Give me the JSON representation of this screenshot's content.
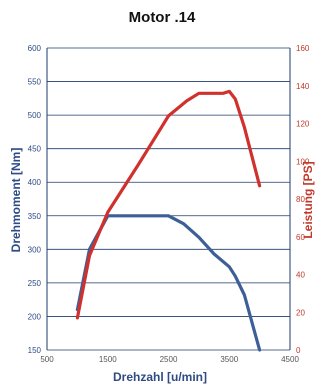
{
  "chart_data": {
    "type": "line",
    "title": "Motor .14",
    "xlabel": "Drehzahl [u/min]",
    "ylabel_left": "Drehmoment [Nm]",
    "ylabel_right": "Leistung [PS]",
    "xlim": [
      500,
      4500
    ],
    "ylim_left": [
      150,
      600
    ],
    "ylim_right": [
      0,
      160
    ],
    "x_ticks": [
      500,
      1500,
      2500,
      3500,
      4500
    ],
    "y_ticks_left": [
      150,
      200,
      250,
      300,
      350,
      400,
      450,
      500,
      550,
      600
    ],
    "y_ticks_right": [
      0,
      20,
      40,
      60,
      80,
      100,
      120,
      140,
      160
    ],
    "grid": true,
    "colors": {
      "torque": "#3d5f98",
      "power": "#d0312d",
      "grid": "#1f3a6b",
      "left_axis": "#2e4b84",
      "right_axis": "#c0392b"
    },
    "series": [
      {
        "axis": "left",
        "x": [
          1000,
          1200,
          1500,
          2500,
          2750,
          3000,
          3250,
          3500,
          3600,
          3750,
          4000
        ],
        "y": [
          210,
          300,
          350,
          350,
          338,
          318,
          293,
          274,
          260,
          232,
          150
        ]
      },
      {
        "axis": "right",
        "x": [
          1000,
          1200,
          1500,
          2000,
          2500,
          2800,
          3000,
          3400,
          3500,
          3600,
          3750,
          4000
        ],
        "y": [
          17,
          50,
          73,
          98,
          124,
          132,
          136,
          136,
          137,
          133,
          118,
          87
        ]
      }
    ]
  }
}
